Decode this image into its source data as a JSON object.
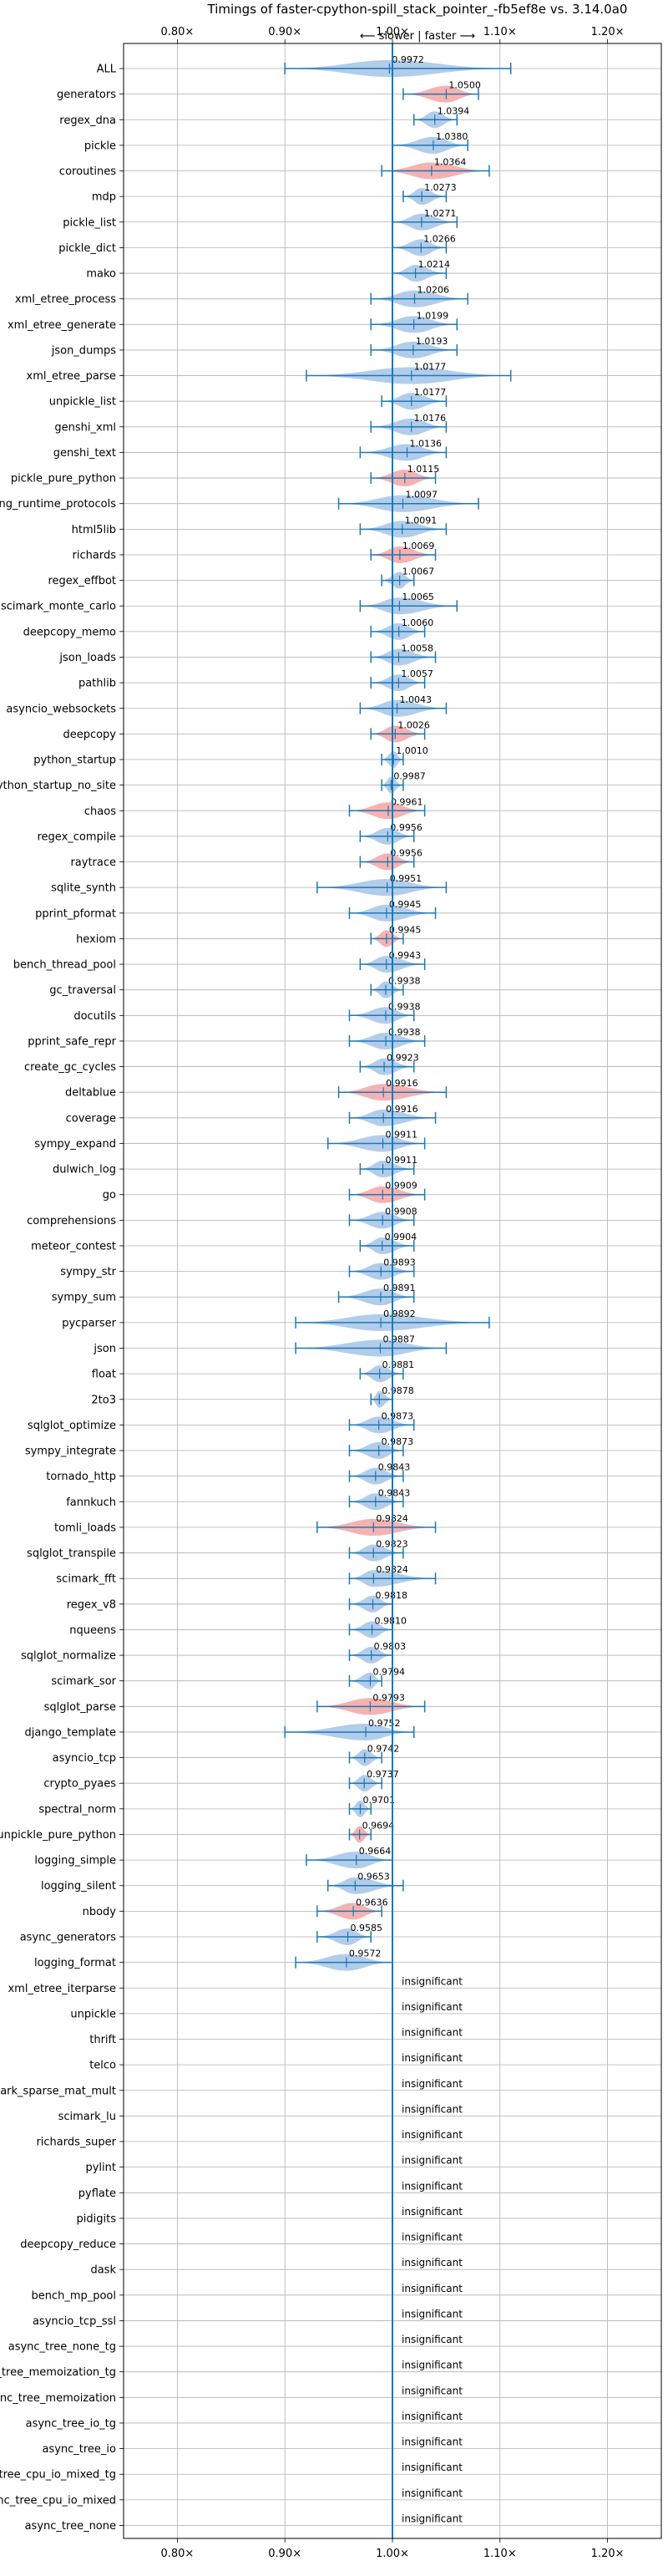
{
  "chart_data": {
    "type": "violin",
    "title": "Timings of faster-cpython-spill_stack_pointer_-fb5ef8e vs. 3.14.0a0",
    "direction_note": "⟵ slower | faster ⟶",
    "xlim": [
      0.75,
      1.25
    ],
    "xticks": [
      0.8,
      0.9,
      1.0,
      1.1,
      1.2
    ],
    "xtick_labels": [
      "0.80×",
      "0.90×",
      "1.00×",
      "1.10×",
      "1.20×"
    ],
    "grid": true,
    "insignificant_label": "insignificant",
    "colors": {
      "faster": "#aac8e8",
      "slower": "#f4aaaa",
      "line": "#1f77b4",
      "grid": "#b0b0b0"
    },
    "benchmarks": [
      {
        "name": "ALL",
        "value": 0.9972,
        "lo": 0.9,
        "hi": 1.11,
        "color": "faster"
      },
      {
        "name": "generators",
        "value": 1.05,
        "lo": 1.01,
        "hi": 1.08,
        "color": "slower"
      },
      {
        "name": "regex_dna",
        "value": 1.0394,
        "lo": 1.02,
        "hi": 1.06,
        "color": "faster"
      },
      {
        "name": "pickle",
        "value": 1.038,
        "lo": 1.0,
        "hi": 1.07,
        "color": "faster"
      },
      {
        "name": "coroutines",
        "value": 1.0364,
        "lo": 0.99,
        "hi": 1.09,
        "color": "slower"
      },
      {
        "name": "mdp",
        "value": 1.0273,
        "lo": 1.01,
        "hi": 1.05,
        "color": "faster"
      },
      {
        "name": "pickle_list",
        "value": 1.0271,
        "lo": 1.0,
        "hi": 1.06,
        "color": "faster"
      },
      {
        "name": "pickle_dict",
        "value": 1.0266,
        "lo": 1.0,
        "hi": 1.05,
        "color": "faster"
      },
      {
        "name": "mako",
        "value": 1.0214,
        "lo": 1.0,
        "hi": 1.05,
        "color": "faster"
      },
      {
        "name": "xml_etree_process",
        "value": 1.0206,
        "lo": 0.98,
        "hi": 1.07,
        "color": "faster"
      },
      {
        "name": "xml_etree_generate",
        "value": 1.0199,
        "lo": 0.98,
        "hi": 1.06,
        "color": "faster"
      },
      {
        "name": "json_dumps",
        "value": 1.0193,
        "lo": 0.98,
        "hi": 1.06,
        "color": "faster"
      },
      {
        "name": "xml_etree_parse",
        "value": 1.0177,
        "lo": 0.92,
        "hi": 1.11,
        "color": "faster"
      },
      {
        "name": "unpickle_list",
        "value": 1.0177,
        "lo": 0.99,
        "hi": 1.05,
        "color": "faster"
      },
      {
        "name": "genshi_xml",
        "value": 1.0176,
        "lo": 0.98,
        "hi": 1.05,
        "color": "faster"
      },
      {
        "name": "genshi_text",
        "value": 1.0136,
        "lo": 0.97,
        "hi": 1.05,
        "color": "faster"
      },
      {
        "name": "pickle_pure_python",
        "value": 1.0115,
        "lo": 0.98,
        "hi": 1.04,
        "color": "slower"
      },
      {
        "name": "typing_runtime_protocols",
        "value": 1.0097,
        "lo": 0.95,
        "hi": 1.08,
        "color": "faster"
      },
      {
        "name": "html5lib",
        "value": 1.0091,
        "lo": 0.97,
        "hi": 1.05,
        "color": "faster"
      },
      {
        "name": "richards",
        "value": 1.0069,
        "lo": 0.98,
        "hi": 1.04,
        "color": "slower"
      },
      {
        "name": "regex_effbot",
        "value": 1.0067,
        "lo": 0.99,
        "hi": 1.02,
        "color": "faster"
      },
      {
        "name": "scimark_monte_carlo",
        "value": 1.0065,
        "lo": 0.97,
        "hi": 1.06,
        "color": "faster"
      },
      {
        "name": "deepcopy_memo",
        "value": 1.006,
        "lo": 0.98,
        "hi": 1.03,
        "color": "faster"
      },
      {
        "name": "json_loads",
        "value": 1.0058,
        "lo": 0.98,
        "hi": 1.04,
        "color": "faster"
      },
      {
        "name": "pathlib",
        "value": 1.0057,
        "lo": 0.98,
        "hi": 1.03,
        "color": "faster"
      },
      {
        "name": "asyncio_websockets",
        "value": 1.0043,
        "lo": 0.97,
        "hi": 1.05,
        "color": "faster"
      },
      {
        "name": "deepcopy",
        "value": 1.0026,
        "lo": 0.98,
        "hi": 1.03,
        "color": "slower"
      },
      {
        "name": "python_startup",
        "value": 1.001,
        "lo": 0.99,
        "hi": 1.01,
        "color": "faster"
      },
      {
        "name": "python_startup_no_site",
        "value": 0.9987,
        "lo": 0.99,
        "hi": 1.01,
        "color": "faster"
      },
      {
        "name": "chaos",
        "value": 0.9961,
        "lo": 0.96,
        "hi": 1.03,
        "color": "slower"
      },
      {
        "name": "regex_compile",
        "value": 0.9956,
        "lo": 0.97,
        "hi": 1.02,
        "color": "faster"
      },
      {
        "name": "raytrace",
        "value": 0.9956,
        "lo": 0.97,
        "hi": 1.02,
        "color": "slower"
      },
      {
        "name": "sqlite_synth",
        "value": 0.9951,
        "lo": 0.93,
        "hi": 1.05,
        "color": "faster"
      },
      {
        "name": "pprint_pformat",
        "value": 0.9945,
        "lo": 0.96,
        "hi": 1.04,
        "color": "faster"
      },
      {
        "name": "hexiom",
        "value": 0.9945,
        "lo": 0.98,
        "hi": 1.01,
        "color": "slower"
      },
      {
        "name": "bench_thread_pool",
        "value": 0.9943,
        "lo": 0.97,
        "hi": 1.03,
        "color": "faster"
      },
      {
        "name": "gc_traversal",
        "value": 0.9938,
        "lo": 0.98,
        "hi": 1.01,
        "color": "faster"
      },
      {
        "name": "docutils",
        "value": 0.9938,
        "lo": 0.96,
        "hi": 1.02,
        "color": "faster"
      },
      {
        "name": "pprint_safe_repr",
        "value": 0.9938,
        "lo": 0.96,
        "hi": 1.03,
        "color": "faster"
      },
      {
        "name": "create_gc_cycles",
        "value": 0.9923,
        "lo": 0.97,
        "hi": 1.02,
        "color": "faster"
      },
      {
        "name": "deltablue",
        "value": 0.9916,
        "lo": 0.95,
        "hi": 1.05,
        "color": "slower"
      },
      {
        "name": "coverage",
        "value": 0.9916,
        "lo": 0.96,
        "hi": 1.04,
        "color": "faster"
      },
      {
        "name": "sympy_expand",
        "value": 0.9911,
        "lo": 0.94,
        "hi": 1.03,
        "color": "faster"
      },
      {
        "name": "dulwich_log",
        "value": 0.9911,
        "lo": 0.97,
        "hi": 1.02,
        "color": "faster"
      },
      {
        "name": "go",
        "value": 0.9909,
        "lo": 0.96,
        "hi": 1.03,
        "color": "slower"
      },
      {
        "name": "comprehensions",
        "value": 0.9908,
        "lo": 0.96,
        "hi": 1.02,
        "color": "faster"
      },
      {
        "name": "meteor_contest",
        "value": 0.9904,
        "lo": 0.97,
        "hi": 1.02,
        "color": "faster"
      },
      {
        "name": "sympy_str",
        "value": 0.9893,
        "lo": 0.96,
        "hi": 1.02,
        "color": "faster"
      },
      {
        "name": "sympy_sum",
        "value": 0.9891,
        "lo": 0.95,
        "hi": 1.02,
        "color": "faster"
      },
      {
        "name": "pycparser",
        "value": 0.9892,
        "lo": 0.91,
        "hi": 1.09,
        "color": "faster"
      },
      {
        "name": "json",
        "value": 0.9887,
        "lo": 0.91,
        "hi": 1.05,
        "color": "faster"
      },
      {
        "name": "float",
        "value": 0.9881,
        "lo": 0.97,
        "hi": 1.01,
        "color": "faster"
      },
      {
        "name": "2to3",
        "value": 0.9878,
        "lo": 0.98,
        "hi": 1.0,
        "color": "faster"
      },
      {
        "name": "sqlglot_optimize",
        "value": 0.9873,
        "lo": 0.96,
        "hi": 1.02,
        "color": "faster"
      },
      {
        "name": "sympy_integrate",
        "value": 0.9873,
        "lo": 0.96,
        "hi": 1.01,
        "color": "faster"
      },
      {
        "name": "tornado_http",
        "value": 0.9843,
        "lo": 0.96,
        "hi": 1.01,
        "color": "faster"
      },
      {
        "name": "fannkuch",
        "value": 0.9843,
        "lo": 0.96,
        "hi": 1.01,
        "color": "faster"
      },
      {
        "name": "tomli_loads",
        "value": 0.9824,
        "lo": 0.93,
        "hi": 1.04,
        "color": "slower"
      },
      {
        "name": "sqlglot_transpile",
        "value": 0.9823,
        "lo": 0.96,
        "hi": 1.01,
        "color": "faster"
      },
      {
        "name": "scimark_fft",
        "value": 0.9824,
        "lo": 0.96,
        "hi": 1.04,
        "color": "faster"
      },
      {
        "name": "regex_v8",
        "value": 0.9818,
        "lo": 0.96,
        "hi": 1.0,
        "color": "faster"
      },
      {
        "name": "nqueens",
        "value": 0.981,
        "lo": 0.96,
        "hi": 1.0,
        "color": "faster"
      },
      {
        "name": "sqlglot_normalize",
        "value": 0.9803,
        "lo": 0.96,
        "hi": 1.0,
        "color": "faster"
      },
      {
        "name": "scimark_sor",
        "value": 0.9794,
        "lo": 0.96,
        "hi": 0.99,
        "color": "faster"
      },
      {
        "name": "sqlglot_parse",
        "value": 0.9793,
        "lo": 0.93,
        "hi": 1.03,
        "color": "slower"
      },
      {
        "name": "django_template",
        "value": 0.9752,
        "lo": 0.9,
        "hi": 1.02,
        "color": "faster"
      },
      {
        "name": "asyncio_tcp",
        "value": 0.9742,
        "lo": 0.96,
        "hi": 0.99,
        "color": "faster"
      },
      {
        "name": "crypto_pyaes",
        "value": 0.9737,
        "lo": 0.96,
        "hi": 0.99,
        "color": "faster"
      },
      {
        "name": "spectral_norm",
        "value": 0.9701,
        "lo": 0.96,
        "hi": 0.98,
        "color": "faster"
      },
      {
        "name": "unpickle_pure_python",
        "value": 0.9694,
        "lo": 0.96,
        "hi": 0.98,
        "color": "slower"
      },
      {
        "name": "logging_simple",
        "value": 0.9664,
        "lo": 0.92,
        "hi": 1.0,
        "color": "faster"
      },
      {
        "name": "logging_silent",
        "value": 0.9653,
        "lo": 0.94,
        "hi": 1.01,
        "color": "faster"
      },
      {
        "name": "nbody",
        "value": 0.9636,
        "lo": 0.93,
        "hi": 0.99,
        "color": "slower"
      },
      {
        "name": "async_generators",
        "value": 0.9585,
        "lo": 0.93,
        "hi": 0.98,
        "color": "faster"
      },
      {
        "name": "logging_format",
        "value": 0.9572,
        "lo": 0.91,
        "hi": 1.0,
        "color": "faster"
      },
      {
        "name": "xml_etree_iterparse",
        "value": null
      },
      {
        "name": "unpickle",
        "value": null
      },
      {
        "name": "thrift",
        "value": null
      },
      {
        "name": "telco",
        "value": null
      },
      {
        "name": "scimark_sparse_mat_mult",
        "value": null
      },
      {
        "name": "scimark_lu",
        "value": null
      },
      {
        "name": "richards_super",
        "value": null
      },
      {
        "name": "pylint",
        "value": null
      },
      {
        "name": "pyflate",
        "value": null
      },
      {
        "name": "pidigits",
        "value": null
      },
      {
        "name": "deepcopy_reduce",
        "value": null
      },
      {
        "name": "dask",
        "value": null
      },
      {
        "name": "bench_mp_pool",
        "value": null
      },
      {
        "name": "asyncio_tcp_ssl",
        "value": null
      },
      {
        "name": "async_tree_none_tg",
        "value": null
      },
      {
        "name": "async_tree_memoization_tg",
        "value": null
      },
      {
        "name": "async_tree_memoization",
        "value": null
      },
      {
        "name": "async_tree_io_tg",
        "value": null
      },
      {
        "name": "async_tree_io",
        "value": null
      },
      {
        "name": "async_tree_cpu_io_mixed_tg",
        "value": null
      },
      {
        "name": "async_tree_cpu_io_mixed",
        "value": null
      },
      {
        "name": "async_tree_none",
        "value": null
      }
    ]
  }
}
